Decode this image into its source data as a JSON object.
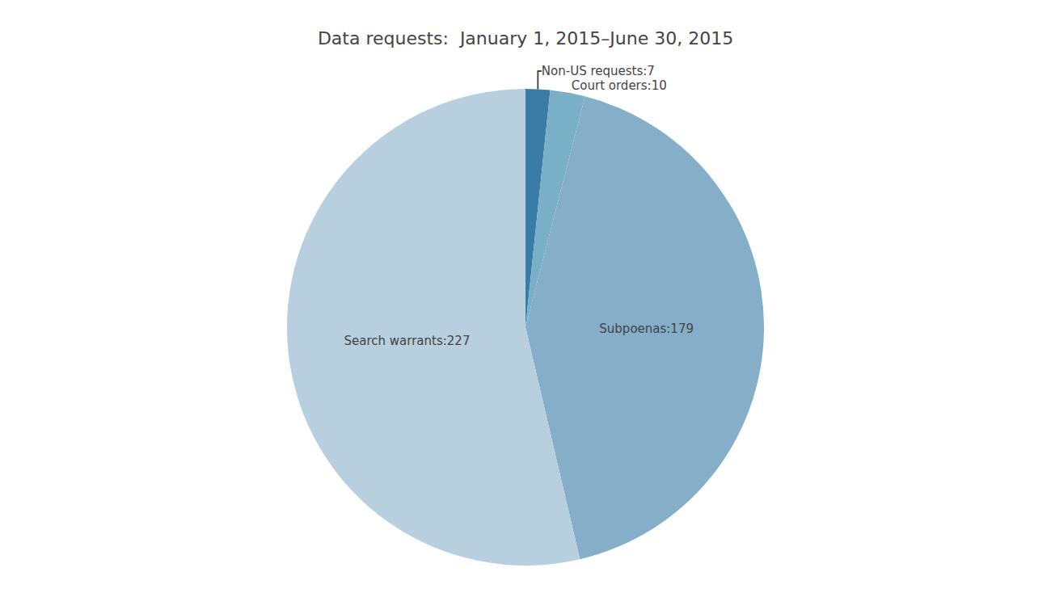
{
  "chart_data": {
    "type": "pie",
    "title": "Data requests:  January 1, 2015–June 30, 2015",
    "categories": [
      "Non-US requests:7",
      "Court orders:10",
      "Subpoenas:179",
      "Search warrants:227"
    ],
    "values": [
      7,
      10,
      179,
      227
    ],
    "colors": [
      "#3a7ca5",
      "#7aafc8",
      "#85aec8",
      "#b8cfe0"
    ]
  }
}
